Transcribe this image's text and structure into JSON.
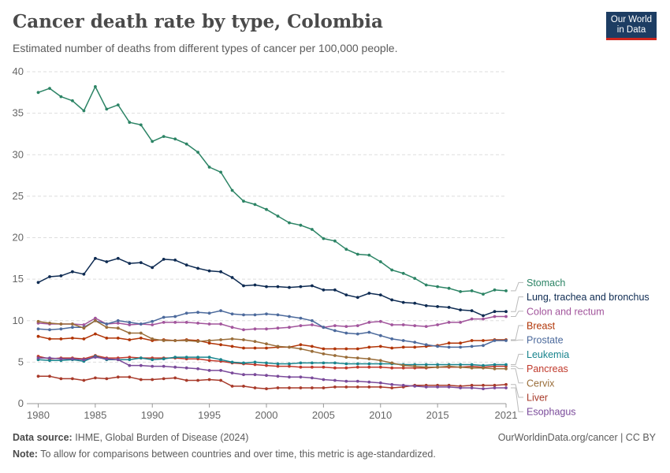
{
  "header": {
    "title": "Cancer death rate by type, Colombia",
    "subtitle": "Estimated number of deaths from different types of cancer per 100,000 people.",
    "logo_line1": "Our World",
    "logo_line2": "in Data"
  },
  "footer": {
    "source_label": "Data source:",
    "source_text": "IHME, Global Burden of Disease (2024)",
    "url": "OurWorldinData.org/cancer | CC BY",
    "note_label": "Note:",
    "note_text": "To allow for comparisons between countries and over time, this metric is age-standardized."
  },
  "chart_data": {
    "type": "line",
    "x": [
      1980,
      1981,
      1982,
      1983,
      1984,
      1985,
      1986,
      1987,
      1988,
      1989,
      1990,
      1991,
      1992,
      1993,
      1994,
      1995,
      1996,
      1997,
      1998,
      1999,
      2000,
      2001,
      2002,
      2003,
      2004,
      2005,
      2006,
      2007,
      2008,
      2009,
      2010,
      2011,
      2012,
      2013,
      2014,
      2015,
      2016,
      2017,
      2018,
      2019,
      2020,
      2021
    ],
    "xlim": [
      1979,
      2021
    ],
    "ylim": [
      0,
      40
    ],
    "xticks": [
      1980,
      1985,
      1990,
      1995,
      2000,
      2005,
      2010,
      2015,
      2021
    ],
    "yticks": [
      0,
      5,
      10,
      15,
      20,
      25,
      30,
      35,
      40
    ],
    "grid": "horizontal dashed",
    "legend": "right, line-end labels",
    "series": [
      {
        "name": "Stomach",
        "color": "#2c8465",
        "values": [
          37.5,
          38.0,
          37.0,
          36.5,
          35.3,
          38.2,
          35.5,
          36.0,
          33.9,
          33.6,
          31.6,
          32.2,
          31.9,
          31.3,
          30.3,
          28.5,
          27.9,
          25.7,
          24.4,
          24.0,
          23.4,
          22.6,
          21.8,
          21.5,
          21.0,
          19.9,
          19.6,
          18.6,
          18.0,
          17.9,
          17.1,
          16.1,
          15.7,
          15.1,
          14.3,
          14.1,
          13.9,
          13.5,
          13.6,
          13.2,
          13.7,
          13.6
        ]
      },
      {
        "name": "Lung, trachea and bronchus",
        "color": "#0e2b52",
        "values": [
          14.6,
          15.3,
          15.4,
          15.9,
          15.6,
          17.5,
          17.1,
          17.5,
          16.9,
          17.0,
          16.4,
          17.4,
          17.3,
          16.7,
          16.3,
          16.0,
          15.9,
          15.2,
          14.2,
          14.3,
          14.1,
          14.1,
          14.0,
          14.1,
          14.2,
          13.7,
          13.7,
          13.1,
          12.8,
          13.3,
          13.1,
          12.5,
          12.2,
          12.1,
          11.8,
          11.7,
          11.6,
          11.3,
          11.2,
          10.6,
          11.1,
          11.1
        ]
      },
      {
        "name": "Colon and rectum",
        "color": "#a2559c",
        "values": [
          9.7,
          9.6,
          9.6,
          9.6,
          9.5,
          10.3,
          9.6,
          9.7,
          9.5,
          9.6,
          9.5,
          9.8,
          9.8,
          9.8,
          9.7,
          9.6,
          9.6,
          9.2,
          8.9,
          9.0,
          9.0,
          9.1,
          9.2,
          9.4,
          9.5,
          9.2,
          9.4,
          9.3,
          9.4,
          9.8,
          9.9,
          9.5,
          9.5,
          9.4,
          9.3,
          9.5,
          9.8,
          9.8,
          10.2,
          10.2,
          10.5,
          10.5
        ]
      },
      {
        "name": "Breast",
        "color": "#b13507",
        "values": [
          8.1,
          7.8,
          7.8,
          7.9,
          7.8,
          8.4,
          7.9,
          7.9,
          7.7,
          7.9,
          7.6,
          7.7,
          7.6,
          7.7,
          7.6,
          7.3,
          7.1,
          6.9,
          6.7,
          6.7,
          6.7,
          6.8,
          6.8,
          7.1,
          6.9,
          6.6,
          6.6,
          6.6,
          6.6,
          6.8,
          6.9,
          6.7,
          6.8,
          6.8,
          6.9,
          7.0,
          7.3,
          7.3,
          7.6,
          7.6,
          7.7,
          7.7
        ]
      },
      {
        "name": "Prostate",
        "color": "#4c6a9c",
        "values": [
          9.0,
          8.9,
          9.0,
          9.2,
          9.2,
          10.0,
          9.6,
          10.0,
          9.8,
          9.6,
          9.9,
          10.4,
          10.5,
          10.9,
          11.0,
          10.9,
          11.2,
          10.8,
          10.7,
          10.7,
          10.8,
          10.7,
          10.5,
          10.3,
          10.0,
          9.2,
          8.8,
          8.5,
          8.4,
          8.6,
          8.2,
          7.8,
          7.6,
          7.4,
          7.1,
          6.9,
          6.8,
          6.8,
          6.9,
          7.0,
          7.6,
          7.6
        ]
      },
      {
        "name": "Pancreas",
        "color": "#c0392b",
        "values": [
          5.7,
          5.4,
          5.5,
          5.5,
          5.4,
          5.8,
          5.5,
          5.5,
          5.6,
          5.5,
          5.5,
          5.5,
          5.5,
          5.4,
          5.4,
          5.2,
          5.1,
          4.9,
          4.8,
          4.7,
          4.6,
          4.5,
          4.5,
          4.4,
          4.4,
          4.4,
          4.3,
          4.3,
          4.4,
          4.4,
          4.4,
          4.3,
          4.3,
          4.3,
          4.3,
          4.4,
          4.4,
          4.4,
          4.5,
          4.4,
          4.5,
          4.5
        ]
      },
      {
        "name": "Leukemia",
        "color": "#18848d",
        "values": [
          5.3,
          5.2,
          5.2,
          5.3,
          5.1,
          5.7,
          5.3,
          5.3,
          5.3,
          5.5,
          5.3,
          5.4,
          5.6,
          5.6,
          5.6,
          5.6,
          5.3,
          5.0,
          4.9,
          5.0,
          4.9,
          4.8,
          4.8,
          4.9,
          4.9,
          4.9,
          4.9,
          4.8,
          4.8,
          4.8,
          4.8,
          4.8,
          4.7,
          4.7,
          4.7,
          4.7,
          4.7,
          4.7,
          4.7,
          4.6,
          4.7,
          4.7
        ]
      },
      {
        "name": "Cervix",
        "color": "#996d39",
        "values": [
          9.9,
          9.7,
          9.6,
          9.6,
          9.1,
          10.0,
          9.2,
          9.1,
          8.5,
          8.5,
          7.8,
          7.6,
          7.6,
          7.6,
          7.5,
          7.6,
          7.7,
          7.8,
          7.7,
          7.5,
          7.2,
          6.9,
          6.8,
          6.6,
          6.3,
          6.0,
          5.8,
          5.6,
          5.5,
          5.4,
          5.2,
          4.9,
          4.6,
          4.5,
          4.4,
          4.4,
          4.5,
          4.4,
          4.3,
          4.3,
          4.2,
          4.2
        ]
      },
      {
        "name": "Liver",
        "color": "#a83a2a",
        "values": [
          3.3,
          3.3,
          3.0,
          3.0,
          2.8,
          3.1,
          3.0,
          3.2,
          3.2,
          2.9,
          2.9,
          3.0,
          3.1,
          2.8,
          2.8,
          2.9,
          2.8,
          2.1,
          2.1,
          1.9,
          1.8,
          1.9,
          1.9,
          1.9,
          1.9,
          1.9,
          2.0,
          2.0,
          2.0,
          2.0,
          2.0,
          1.9,
          2.0,
          2.2,
          2.2,
          2.2,
          2.2,
          2.1,
          2.2,
          2.2,
          2.2,
          2.3
        ]
      },
      {
        "name": "Esophagus",
        "color": "#7a4a9a",
        "values": [
          5.5,
          5.5,
          5.4,
          5.4,
          5.3,
          5.6,
          5.4,
          5.3,
          4.6,
          4.6,
          4.5,
          4.5,
          4.4,
          4.3,
          4.2,
          4.0,
          4.0,
          3.7,
          3.5,
          3.5,
          3.4,
          3.3,
          3.2,
          3.2,
          3.1,
          2.9,
          2.8,
          2.7,
          2.7,
          2.6,
          2.5,
          2.3,
          2.2,
          2.1,
          2.0,
          2.0,
          2.0,
          1.9,
          1.9,
          1.8,
          1.9,
          1.9
        ]
      }
    ]
  }
}
